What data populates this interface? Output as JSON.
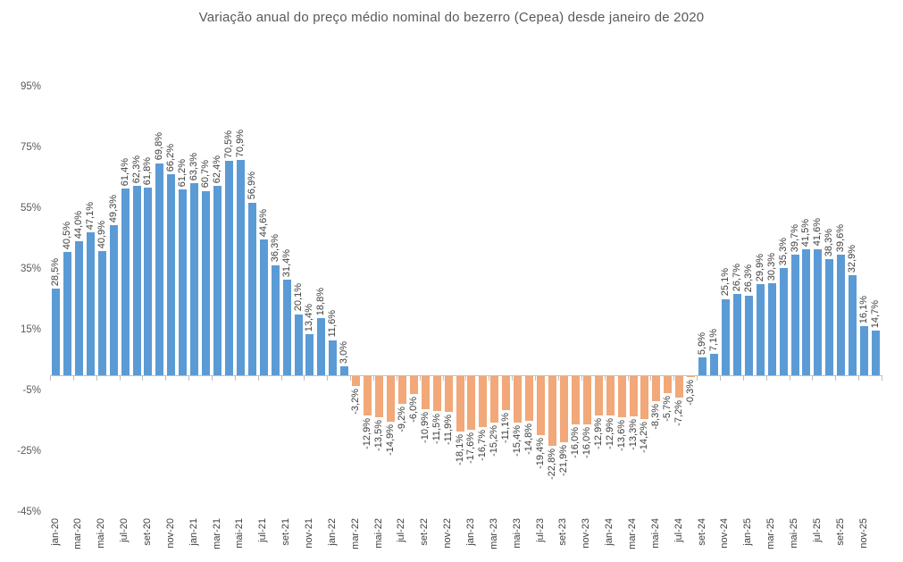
{
  "title": "Variação anual do preço médio nominal do bezerro (Cepea) desde janeiro de 2020",
  "chart_data": {
    "type": "bar",
    "title": "Variação anual do preço médio nominal do bezerro (Cepea) desde janeiro de 2020",
    "unit": "%",
    "ylim": [
      -45,
      95
    ],
    "grid": false,
    "legend": false,
    "y_tick_labels": [
      "95%",
      "75%",
      "55%",
      "35%",
      "15%",
      "-5%",
      "-25%",
      "-45%"
    ],
    "x_tick_labels": [
      "jan-20",
      "mar-20",
      "mai-20",
      "jul-20",
      "set-20",
      "nov-20",
      "jan-21",
      "mar-21",
      "mai-21",
      "jul-21",
      "set-21",
      "nov-21",
      "jan-22",
      "mar-22",
      "mai-22",
      "jul-22",
      "set-22",
      "nov-22",
      "jan-23",
      "mar-23",
      "mai-23",
      "jul-23",
      "set-23",
      "nov-23",
      "jan-24",
      "mar-24",
      "mai-24",
      "jul-24",
      "set-24",
      "nov-24",
      "jan-25",
      "mar-25",
      "mai-25",
      "jul-25",
      "set-25",
      "nov-25"
    ],
    "values": [
      28.5,
      40.5,
      44.0,
      47.1,
      40.9,
      49.3,
      61.4,
      62.3,
      61.8,
      69.8,
      66.2,
      61.2,
      63.3,
      60.7,
      62.4,
      70.5,
      70.9,
      56.9,
      44.6,
      36.3,
      31.4,
      20.1,
      13.4,
      18.8,
      11.6,
      3.0,
      -3.2,
      -12.9,
      -13.5,
      -14.9,
      -9.2,
      -6.0,
      -10.9,
      -11.5,
      -11.9,
      -18.1,
      -17.6,
      -16.7,
      -15.2,
      -11.1,
      -15.4,
      -14.8,
      -19.4,
      -22.8,
      -21.9,
      -16.0,
      -16.0,
      -12.9,
      -12.9,
      -13.6,
      -13.3,
      -14.2,
      -8.3,
      -5.7,
      -7.2,
      -0.3,
      5.9,
      7.1,
      25.1,
      26.7,
      26.3,
      29.9,
      30.3,
      35.3,
      39.7,
      41.5,
      41.6,
      38.3,
      39.6,
      32.9,
      16.1,
      14.7
    ],
    "value_labels": [
      "28,5%",
      "40,5%",
      "44,0%",
      "47,1%",
      "40,9%",
      "49,3%",
      "61,4%",
      "62,3%",
      "61,8%",
      "69,8%",
      "66,2%",
      "61,2%",
      "63,3%",
      "60,7%",
      "62,4%",
      "70,5%",
      "70,9%",
      "56,9%",
      "44,6%",
      "36,3%",
      "31,4%",
      "20,1%",
      "13,4%",
      "18,8%",
      "11,6%",
      "3,0%",
      "-3,2%",
      "-12,9%",
      "-13,5%",
      "-14,9%",
      "-9,2%",
      "-6,0%",
      "-10,9%",
      "-11,5%",
      "-11,9%",
      "-18,1%",
      "-17,6%",
      "-16,7%",
      "-15,2%",
      "-11,1%",
      "-15,4%",
      "-14,8%",
      "-19,4%",
      "-22,8%",
      "-21,9%",
      "-16,0%",
      "-16,0%",
      "-12,9%",
      "-12,9%",
      "-13,6%",
      "-13,3%",
      "-14,2%",
      "-8,3%",
      "-5,7%",
      "-7,2%",
      "-0,3%",
      "5,9%",
      "7,1%",
      "25,1%",
      "26,7%",
      "26,3%",
      "29,9%",
      "30,3%",
      "35,3%",
      "39,7%",
      "41,5%",
      "41,6%",
      "38,3%",
      "39,6%",
      "32,9%",
      "16,1%",
      "14,7%"
    ],
    "colors": {
      "positive_bar": "#5b9bd5",
      "negative_bar": "#f2a878",
      "axis_line": "#bfbfbf",
      "title_text": "#595959",
      "axis_text": "#595959",
      "data_label_text": "#3f3f3f"
    }
  }
}
